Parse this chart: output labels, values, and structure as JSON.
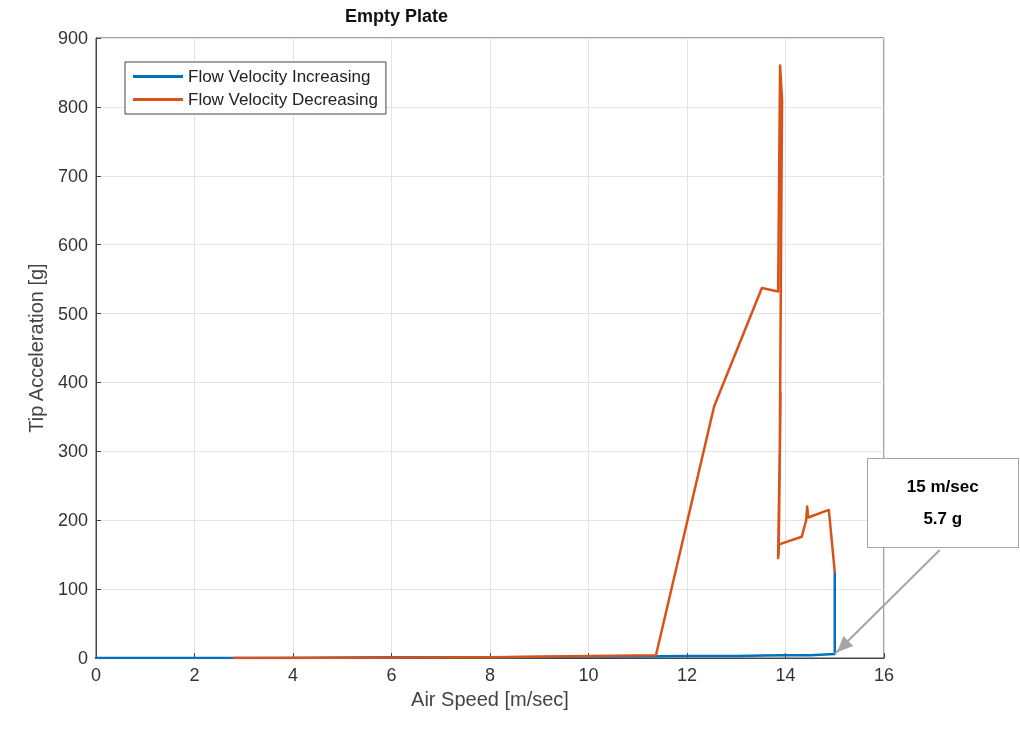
{
  "chart_data": {
    "type": "line",
    "title": "Empty Plate",
    "xlabel": "Air Speed [m/sec]",
    "ylabel": "Tip Acceleration [g]",
    "xlim": [
      0,
      16
    ],
    "xticks": [
      0,
      2,
      4,
      6,
      8,
      10,
      12,
      14,
      16
    ],
    "ylim": [
      0,
      900
    ],
    "yticks": [
      0,
      100,
      200,
      300,
      400,
      500,
      600,
      700,
      800,
      900
    ],
    "grid": true,
    "legend": "top left",
    "marker": "none",
    "line_style": "solid",
    "series": [
      {
        "name": "Flow Velocity Increasing",
        "color": "#0072bd",
        "x": [
          0,
          2,
          4,
          6,
          8,
          10,
          11,
          12,
          13,
          14,
          14.5,
          15,
          15
        ],
        "values": [
          0,
          0,
          0,
          1,
          1,
          2,
          2,
          3,
          3,
          4,
          4,
          5.7,
          125
        ]
      },
      {
        "name": "Flow Velocity Decreasing",
        "color": "#d95319",
        "x": [
          15,
          14.88,
          14.46,
          14.44,
          14.42,
          14.33,
          13.87,
          13.85,
          13.9,
          13.86,
          13.88,
          13.93,
          13.89,
          13.85,
          13.52,
          12.55,
          11.37,
          8,
          2.8
        ],
        "values": [
          125,
          215,
          204,
          220,
          200,
          176,
          165,
          145,
          385,
          150,
          260,
          810,
          860,
          532,
          537,
          365,
          4,
          1,
          0
        ]
      }
    ],
    "annotations": [
      {
        "text": "15 m/sec\n5.7 g",
        "x": 15,
        "y": 5.7
      }
    ]
  }
}
